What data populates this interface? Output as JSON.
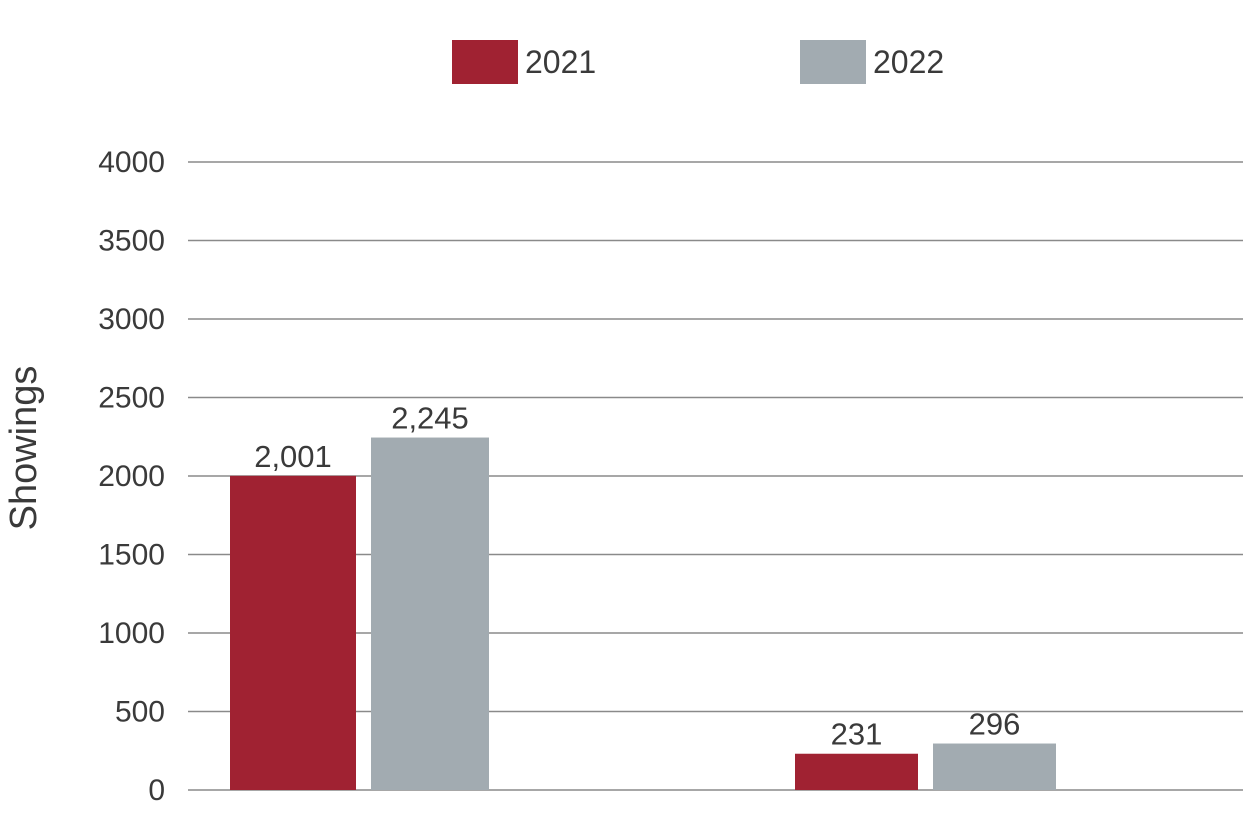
{
  "chart_data": {
    "type": "bar",
    "title": "",
    "xlabel": "",
    "ylabel": "Showings",
    "ylim": [
      0,
      4000
    ],
    "yticks": [
      0,
      500,
      1000,
      1500,
      2000,
      2500,
      3000,
      3500,
      4000
    ],
    "grid": true,
    "legend_position": "top-center",
    "categories": [
      "",
      ""
    ],
    "series": [
      {
        "name": "2021",
        "color": "#a02232",
        "values": [
          2001,
          231
        ],
        "labels": [
          "2,001",
          "231"
        ]
      },
      {
        "name": "2022",
        "color": "#a2abb1",
        "values": [
          2245,
          296
        ],
        "labels": [
          "2,245",
          "296"
        ]
      }
    ]
  }
}
